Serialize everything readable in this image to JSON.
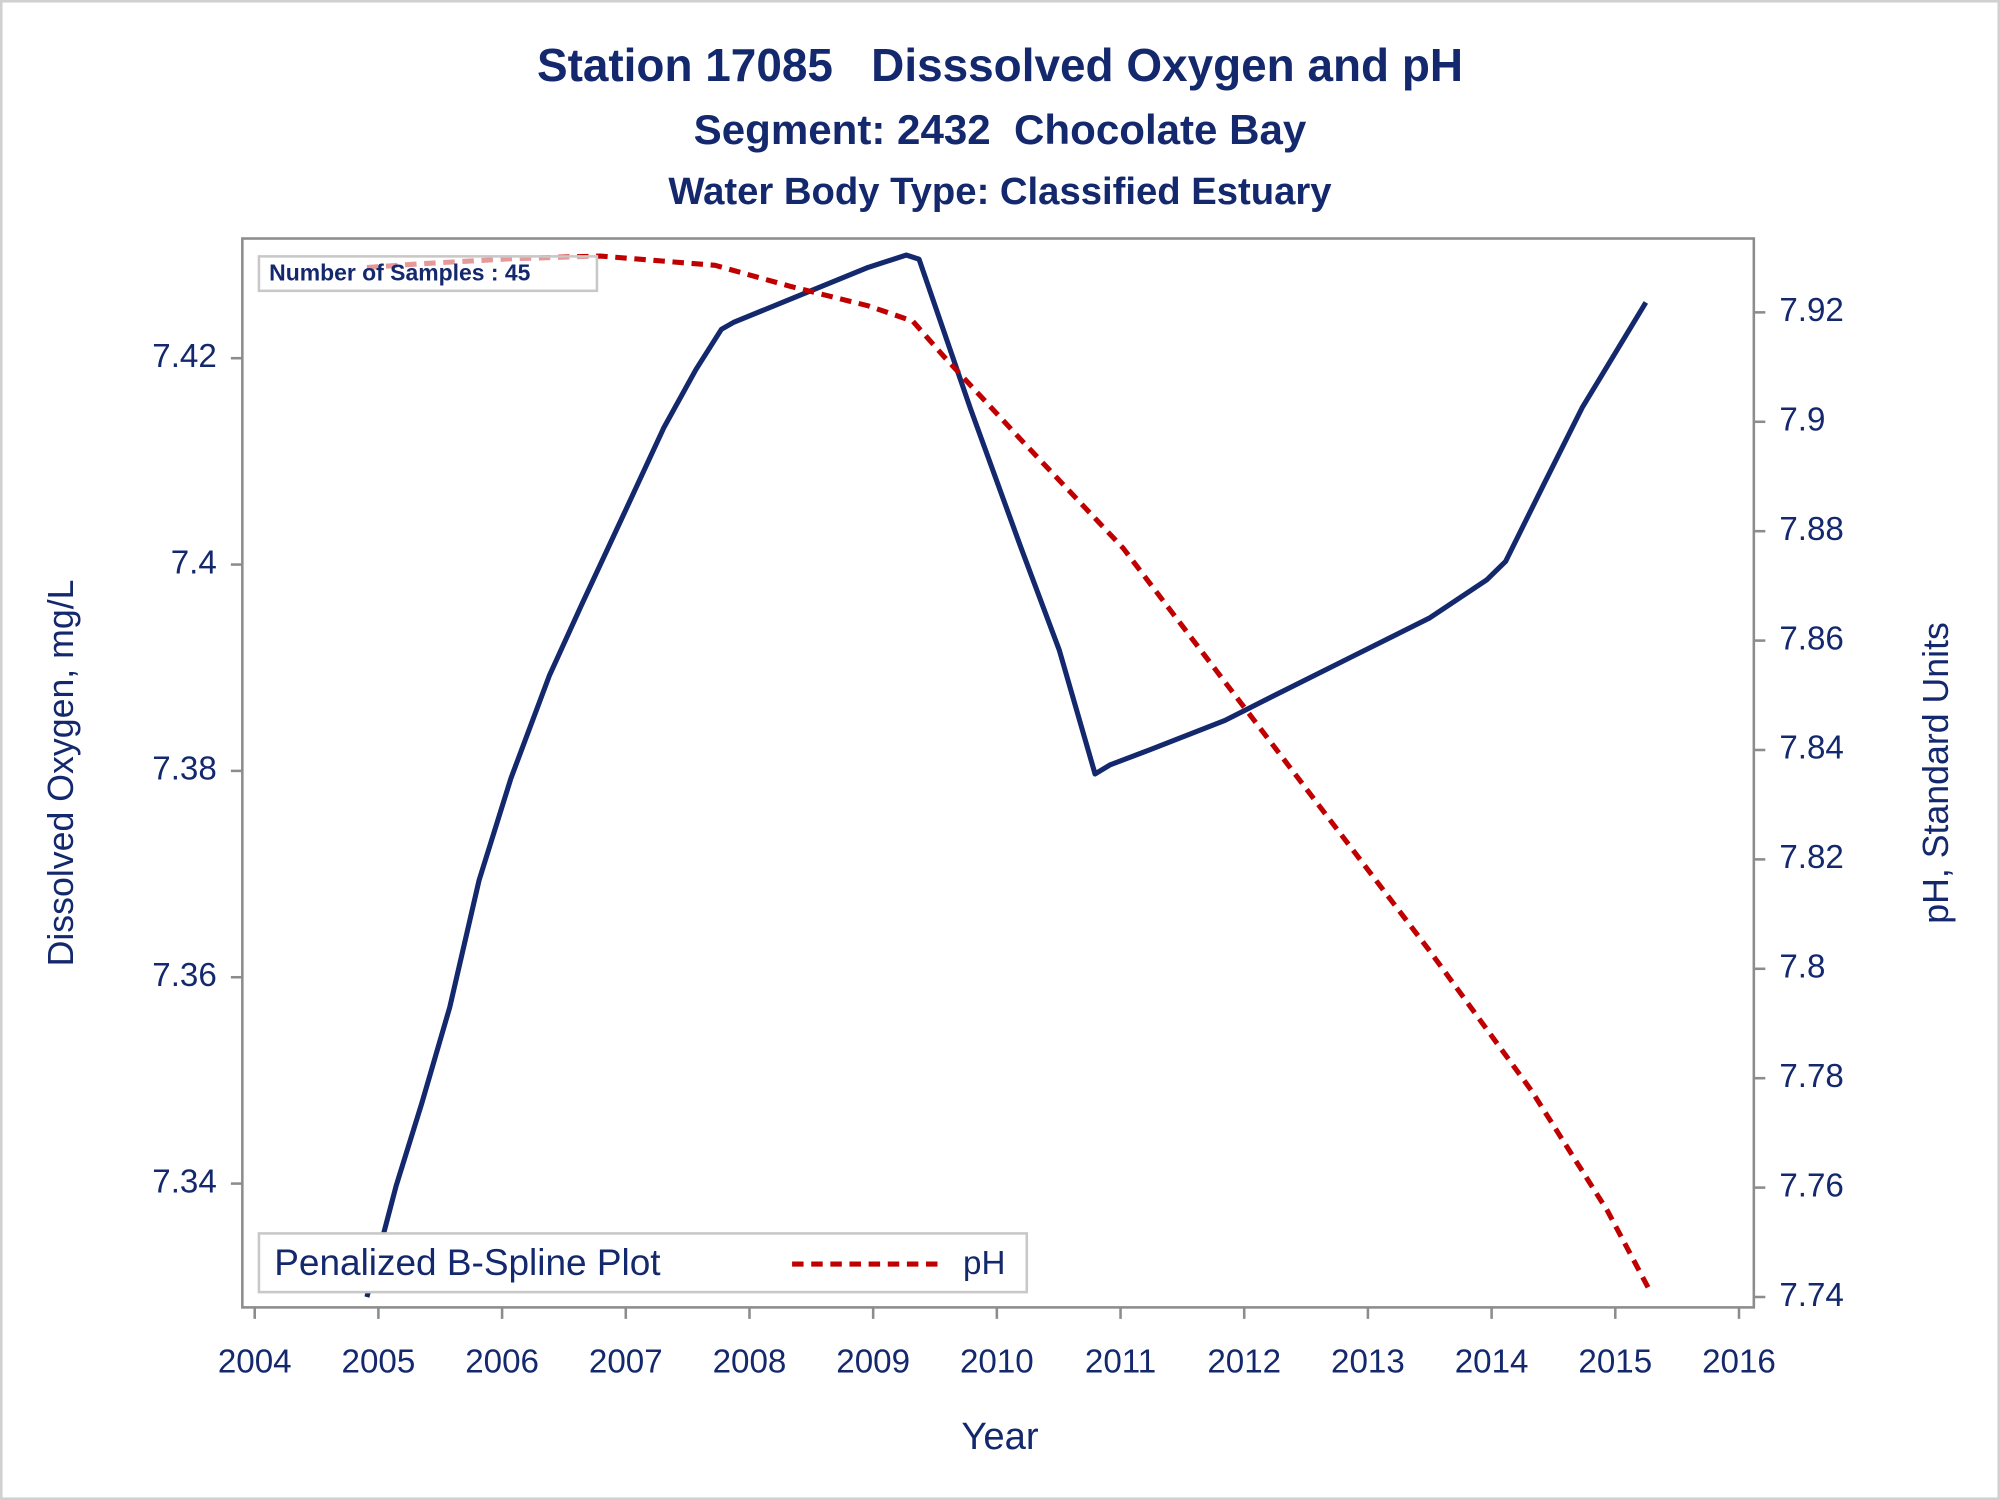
{
  "chart_data": {
    "type": "line",
    "title": "Station 17085   Disssolved Oxygen and pH",
    "subtitle": "Segment: 2432  Chocolate Bay",
    "subtitle2": "Water Body Type: Classified Estuary",
    "xlabel": "Year",
    "ylabel": "Dissolved Oxygen, mg/L",
    "y2label": "pH, Standard Units",
    "annotation": "Number of Samples : 45",
    "legend_title": "Penalized B-Spline Plot",
    "legend": "lower left",
    "xlim": [
      2003.9,
      2016.12
    ],
    "xticks": [
      2004,
      2005,
      2006,
      2007,
      2008,
      2009,
      2010,
      2011,
      2012,
      2013,
      2014,
      2015,
      2016
    ],
    "ylim": [
      7.328,
      7.4316
    ],
    "yticks": [
      7.34,
      7.36,
      7.38,
      7.4,
      7.42
    ],
    "y2lim": [
      7.7381,
      7.9335
    ],
    "y2ticks": [
      7.74,
      7.76,
      7.78,
      7.8,
      7.82,
      7.84,
      7.86,
      7.88,
      7.9,
      7.92
    ],
    "series": [
      {
        "color": "#14286e",
        "dashed": false,
        "x": [
          2004.907,
          2005.144,
          2005.351,
          2005.577,
          2005.814,
          2006.072,
          2006.381,
          2006.639,
          2007.0,
          2007.309,
          2007.567,
          2007.773,
          2007.876,
          2008.959,
          2009.268,
          2009.371,
          2009.784,
          2010.196,
          2010.505,
          2010.794,
          2010.918,
          2011.227,
          2011.845,
          2012.258,
          2012.876,
          2013.495,
          2013.959,
          2014.113,
          2014.423,
          2014.732,
          2015.247
        ],
        "values": [
          7.329,
          7.3398,
          7.3478,
          7.3571,
          7.3694,
          7.3793,
          7.3892,
          7.396,
          7.4053,
          7.4133,
          7.4189,
          7.4228,
          7.4235,
          7.4288,
          7.43,
          7.4296,
          7.4152,
          7.4016,
          7.3917,
          7.3797,
          7.3806,
          7.382,
          7.3849,
          7.3874,
          7.3911,
          7.3948,
          7.3985,
          7.4003,
          7.4078,
          7.4152,
          7.4254
        ]
      },
      {
        "name": "pH",
        "color": "#c00000",
        "dashed": true,
        "axis": "y2",
        "x": [
          2004.907,
          2005.351,
          2006.072,
          2006.794,
          2007.722,
          2008.34,
          2008.959,
          2009.32,
          2009.577,
          2010.196,
          2011.021,
          2011.845,
          2012.67,
          2013.495,
          2014.32,
          2014.938,
          2015.278
        ],
        "values": [
          7.9282,
          7.9289,
          7.9298,
          7.9303,
          7.9286,
          7.9247,
          7.9212,
          7.9184,
          7.9118,
          7.8967,
          7.8769,
          7.8524,
          7.8279,
          7.8034,
          7.7778,
          7.7557,
          7.7412
        ]
      }
    ]
  }
}
